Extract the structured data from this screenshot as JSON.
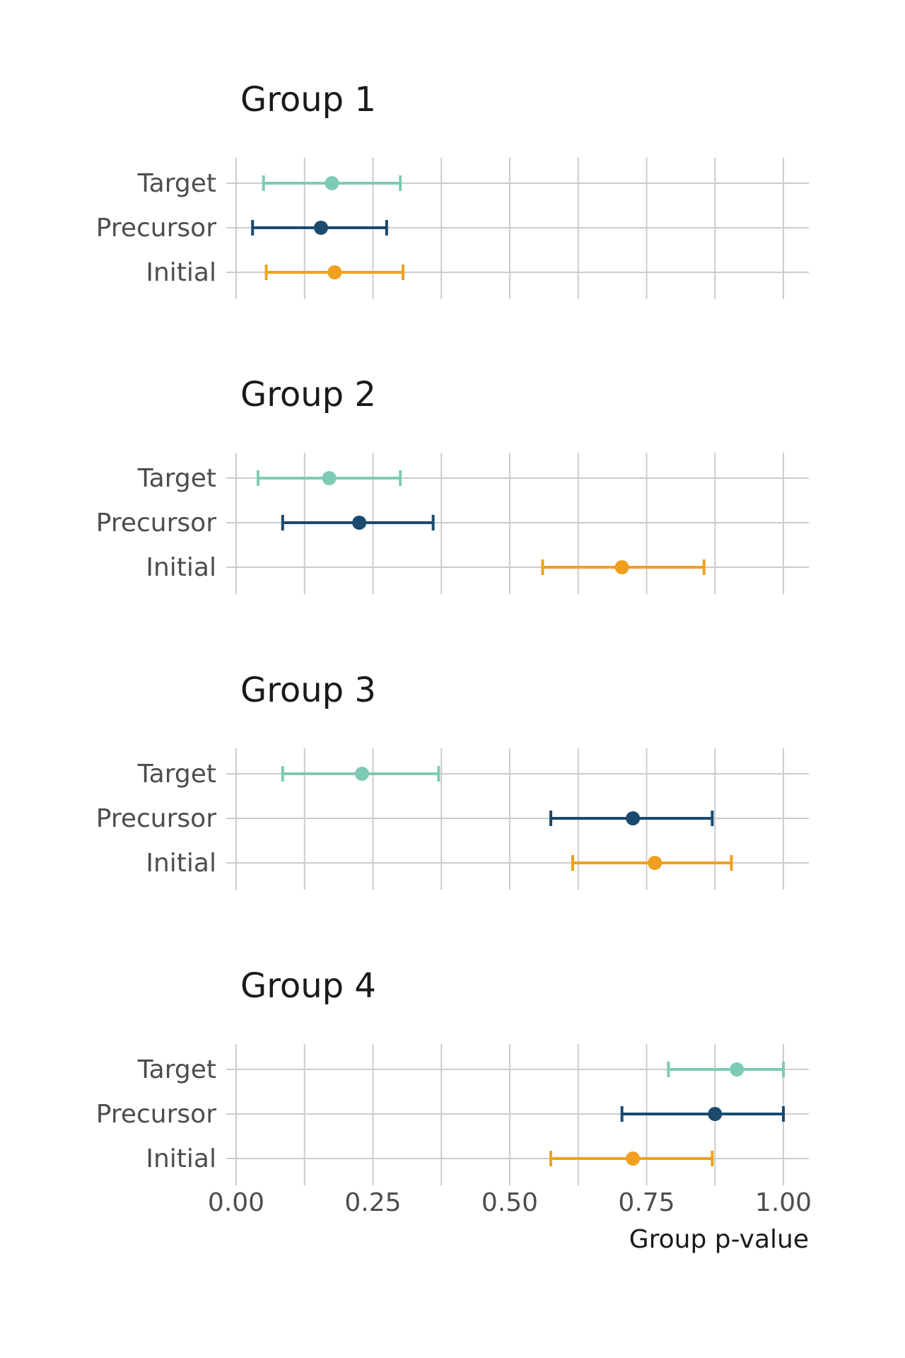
{
  "chart_data": {
    "type": "errorbar",
    "xlabel": "Group p-value",
    "xlim": [
      0,
      1
    ],
    "x_ticks": [
      0,
      0.25,
      0.5,
      0.75,
      1
    ],
    "x_tick_labels": [
      "0.00",
      "0.25",
      "0.50",
      "0.75",
      "1.00"
    ],
    "grid": true,
    "categories": [
      "Target",
      "Precursor",
      "Initial"
    ],
    "colors": {
      "Target": "#7dcbb4",
      "Precursor": "#1a4a6e",
      "Initial": "#f0a01e"
    },
    "panels": [
      {
        "title": "Group 1",
        "points": [
          {
            "category": "Target",
            "estimate": 0.175,
            "low": 0.05,
            "high": 0.3
          },
          {
            "category": "Precursor",
            "estimate": 0.155,
            "low": 0.03,
            "high": 0.275
          },
          {
            "category": "Initial",
            "estimate": 0.18,
            "low": 0.055,
            "high": 0.305
          }
        ]
      },
      {
        "title": "Group 2",
        "points": [
          {
            "category": "Target",
            "estimate": 0.17,
            "low": 0.04,
            "high": 0.3
          },
          {
            "category": "Precursor",
            "estimate": 0.225,
            "low": 0.085,
            "high": 0.36
          },
          {
            "category": "Initial",
            "estimate": 0.705,
            "low": 0.56,
            "high": 0.855
          }
        ]
      },
      {
        "title": "Group 3",
        "points": [
          {
            "category": "Target",
            "estimate": 0.23,
            "low": 0.085,
            "high": 0.37
          },
          {
            "category": "Precursor",
            "estimate": 0.725,
            "low": 0.575,
            "high": 0.87
          },
          {
            "category": "Initial",
            "estimate": 0.765,
            "low": 0.615,
            "high": 0.905
          }
        ]
      },
      {
        "title": "Group 4",
        "points": [
          {
            "category": "Target",
            "estimate": 0.915,
            "low": 0.79,
            "high": 1.0
          },
          {
            "category": "Precursor",
            "estimate": 0.875,
            "low": 0.705,
            "high": 1.0
          },
          {
            "category": "Initial",
            "estimate": 0.725,
            "low": 0.575,
            "high": 0.87
          }
        ]
      }
    ]
  }
}
